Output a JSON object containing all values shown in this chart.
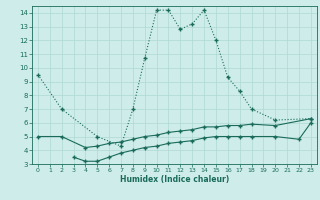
{
  "xlabel": "Humidex (Indice chaleur)",
  "bg_color": "#cdecea",
  "line_color": "#1a6b5a",
  "grid_color": "#b0d8d4",
  "xlim": [
    -0.5,
    23.5
  ],
  "ylim": [
    3,
    14.5
  ],
  "xticks": [
    0,
    1,
    2,
    3,
    4,
    5,
    6,
    7,
    8,
    9,
    10,
    11,
    12,
    13,
    14,
    15,
    16,
    17,
    18,
    19,
    20,
    21,
    22,
    23
  ],
  "yticks": [
    3,
    4,
    5,
    6,
    7,
    8,
    9,
    10,
    11,
    12,
    13,
    14
  ],
  "max_x": [
    0,
    2,
    5,
    7,
    8,
    9,
    10,
    11,
    12,
    13,
    14,
    15,
    16,
    17,
    18,
    20,
    23
  ],
  "max_y": [
    9.5,
    7.0,
    5.0,
    4.3,
    7.0,
    10.7,
    14.2,
    14.2,
    12.8,
    13.2,
    14.2,
    12.0,
    9.3,
    8.3,
    7.0,
    6.2,
    6.3
  ],
  "mean_x": [
    0,
    2,
    4,
    5,
    6,
    7,
    8,
    9,
    10,
    11,
    12,
    13,
    14,
    15,
    16,
    17,
    18,
    20,
    23
  ],
  "mean_y": [
    5.0,
    5.0,
    4.2,
    4.3,
    4.5,
    4.6,
    4.8,
    5.0,
    5.1,
    5.3,
    5.4,
    5.5,
    5.7,
    5.7,
    5.8,
    5.8,
    5.9,
    5.8,
    6.3
  ],
  "min_x": [
    3,
    4,
    5,
    6,
    7,
    8,
    9,
    10,
    11,
    12,
    13,
    14,
    15,
    16,
    17,
    18,
    20,
    22,
    23
  ],
  "min_y": [
    3.5,
    3.2,
    3.2,
    3.5,
    3.8,
    4.0,
    4.2,
    4.3,
    4.5,
    4.6,
    4.7,
    4.9,
    5.0,
    5.0,
    5.0,
    5.0,
    5.0,
    4.8,
    6.0
  ]
}
